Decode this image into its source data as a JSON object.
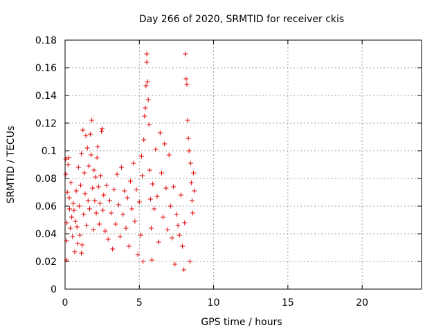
{
  "chart_data": {
    "type": "scatter",
    "title": "Day 266 of 2020, SRMTID for receiver ckis",
    "xlabel": "GPS time / hours",
    "ylabel": "SRMTID / TECUs",
    "xlim": [
      0,
      24
    ],
    "ylim": [
      0,
      0.18
    ],
    "xticks": [
      0,
      5,
      10,
      15,
      20
    ],
    "xtick_labels": [
      "0",
      "5",
      "10",
      "15",
      "20"
    ],
    "yticks": [
      0,
      0.02,
      0.04,
      0.06,
      0.08,
      0.1,
      0.12,
      0.14,
      0.16,
      0.18
    ],
    "ytick_labels": [
      "0",
      "0.02",
      "0.04",
      "0.06",
      "0.08",
      "0.1",
      "0.12",
      "0.14",
      "0.16",
      "0.18"
    ],
    "grid": true,
    "marker": "+",
    "color": "#e00000",
    "series": [
      {
        "points": [
          [
            0.05,
            0.094
          ],
          [
            0.05,
            0.083
          ],
          [
            0.08,
            0.021
          ],
          [
            0.1,
            0.035
          ],
          [
            0.12,
            0.048
          ],
          [
            0.15,
            0.07
          ],
          [
            0.2,
            0.09
          ],
          [
            0.25,
            0.095
          ],
          [
            0.28,
            0.066
          ],
          [
            0.3,
            0.058
          ],
          [
            0.35,
            0.044
          ],
          [
            0.4,
            0.077
          ],
          [
            0.45,
            0.052
          ],
          [
            0.5,
            0.038
          ],
          [
            0.55,
            0.062
          ],
          [
            0.6,
            0.057
          ],
          [
            0.65,
            0.027
          ],
          [
            0.7,
            0.049
          ],
          [
            0.75,
            0.071
          ],
          [
            0.8,
            0.045
          ],
          [
            0.85,
            0.033
          ],
          [
            0.9,
            0.088
          ],
          [
            0.95,
            0.06
          ],
          [
            1.0,
            0.039
          ],
          [
            1.05,
            0.075
          ],
          [
            1.1,
            0.026
          ],
          [
            1.1,
            0.098
          ],
          [
            1.15,
            0.032
          ],
          [
            1.2,
            0.115
          ],
          [
            1.25,
            0.054
          ],
          [
            1.3,
            0.084
          ],
          [
            1.35,
            0.069
          ],
          [
            1.4,
            0.111
          ],
          [
            1.45,
            0.046
          ],
          [
            1.5,
            0.102
          ],
          [
            1.55,
            0.064
          ],
          [
            1.6,
            0.089
          ],
          [
            1.65,
            0.058
          ],
          [
            1.7,
            0.112
          ],
          [
            1.75,
            0.097
          ],
          [
            1.8,
            0.122
          ],
          [
            1.85,
            0.073
          ],
          [
            1.9,
            0.043
          ],
          [
            1.95,
            0.086
          ],
          [
            2.0,
            0.064
          ],
          [
            2.05,
            0.081
          ],
          [
            2.1,
            0.055
          ],
          [
            2.15,
            0.095
          ],
          [
            2.2,
            0.103
          ],
          [
            2.25,
            0.074
          ],
          [
            2.3,
            0.047
          ],
          [
            2.35,
            0.062
          ],
          [
            2.4,
            0.082
          ],
          [
            2.45,
            0.114
          ],
          [
            2.5,
            0.116
          ],
          [
            2.55,
            0.057
          ],
          [
            2.6,
            0.068
          ],
          [
            2.7,
            0.042
          ],
          [
            2.8,
            0.075
          ],
          [
            2.9,
            0.036
          ],
          [
            3.0,
            0.064
          ],
          [
            3.1,
            0.055
          ],
          [
            3.2,
            0.029
          ],
          [
            3.3,
            0.072
          ],
          [
            3.4,
            0.047
          ],
          [
            3.5,
            0.083
          ],
          [
            3.6,
            0.061
          ],
          [
            3.7,
            0.038
          ],
          [
            3.8,
            0.088
          ],
          [
            3.9,
            0.054
          ],
          [
            4.0,
            0.071
          ],
          [
            4.1,
            0.044
          ],
          [
            4.2,
            0.066
          ],
          [
            4.3,
            0.031
          ],
          [
            4.4,
            0.078
          ],
          [
            4.5,
            0.058
          ],
          [
            4.6,
            0.091
          ],
          [
            4.7,
            0.049
          ],
          [
            4.8,
            0.072
          ],
          [
            4.9,
            0.025
          ],
          [
            5.0,
            0.063
          ],
          [
            5.1,
            0.039
          ],
          [
            5.15,
            0.096
          ],
          [
            5.2,
            0.082
          ],
          [
            5.25,
            0.02
          ],
          [
            5.3,
            0.108
          ],
          [
            5.35,
            0.125
          ],
          [
            5.4,
            0.131
          ],
          [
            5.45,
            0.147
          ],
          [
            5.5,
            0.17
          ],
          [
            5.5,
            0.164
          ],
          [
            5.55,
            0.15
          ],
          [
            5.6,
            0.137
          ],
          [
            5.65,
            0.119
          ],
          [
            5.7,
            0.086
          ],
          [
            5.75,
            0.065
          ],
          [
            5.8,
            0.044
          ],
          [
            5.85,
            0.021
          ],
          [
            5.9,
            0.076
          ],
          [
            6.0,
            0.058
          ],
          [
            6.1,
            0.101
          ],
          [
            6.2,
            0.067
          ],
          [
            6.3,
            0.034
          ],
          [
            6.4,
            0.113
          ],
          [
            6.5,
            0.084
          ],
          [
            6.6,
            0.052
          ],
          [
            6.7,
            0.105
          ],
          [
            6.8,
            0.073
          ],
          [
            6.9,
            0.043
          ],
          [
            7.0,
            0.097
          ],
          [
            7.1,
            0.06
          ],
          [
            7.2,
            0.037
          ],
          [
            7.3,
            0.074
          ],
          [
            7.4,
            0.018
          ],
          [
            7.5,
            0.054
          ],
          [
            7.6,
            0.046
          ],
          [
            7.7,
            0.039
          ],
          [
            7.8,
            0.068
          ],
          [
            7.9,
            0.031
          ],
          [
            8.0,
            0.014
          ],
          [
            8.05,
            0.048
          ],
          [
            8.1,
            0.17
          ],
          [
            8.15,
            0.152
          ],
          [
            8.2,
            0.148
          ],
          [
            8.25,
            0.122
          ],
          [
            8.3,
            0.109
          ],
          [
            8.35,
            0.1
          ],
          [
            8.4,
            0.02
          ],
          [
            8.45,
            0.091
          ],
          [
            8.5,
            0.077
          ],
          [
            8.55,
            0.064
          ],
          [
            8.6,
            0.055
          ],
          [
            8.65,
            0.084
          ],
          [
            8.7,
            0.071
          ]
        ]
      }
    ]
  }
}
